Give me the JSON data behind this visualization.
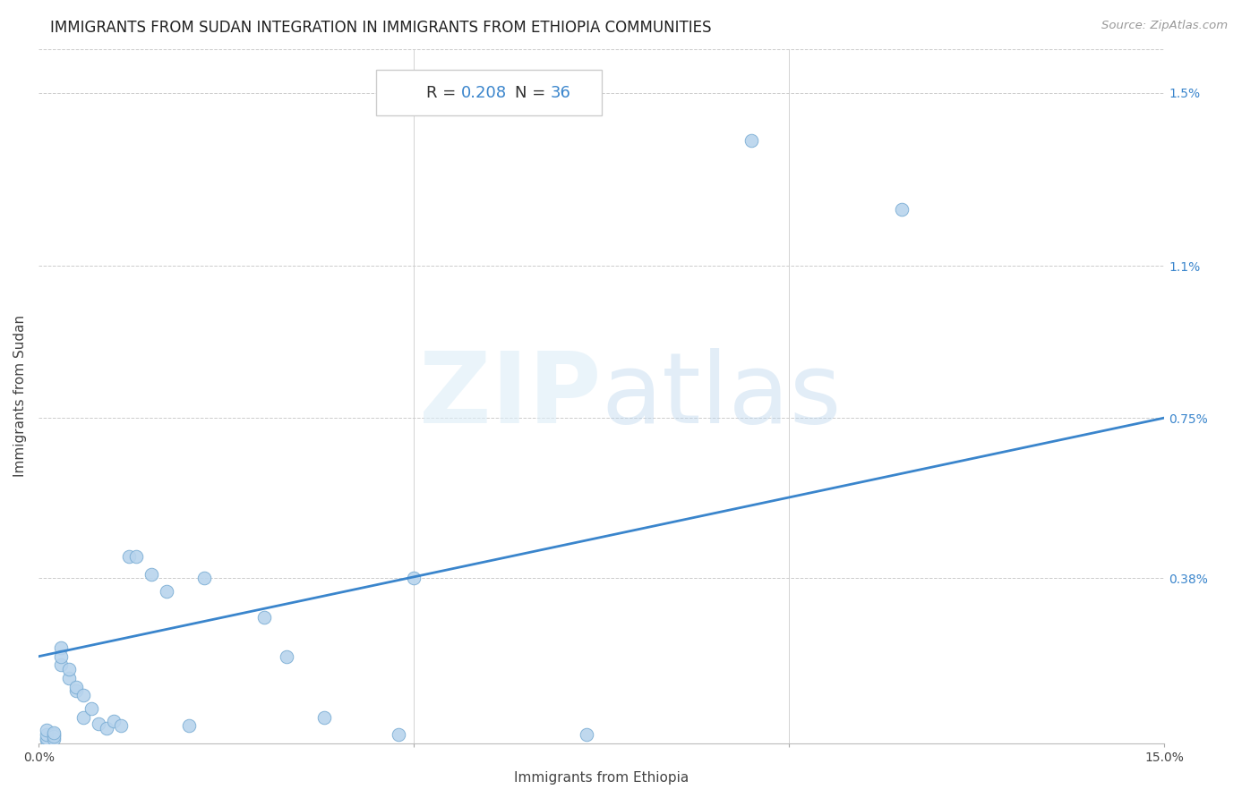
{
  "title": "IMMIGRANTS FROM SUDAN INTEGRATION IN IMMIGRANTS FROM ETHIOPIA COMMUNITIES",
  "source": "Source: ZipAtlas.com",
  "xlabel": "Immigrants from Ethiopia",
  "ylabel": "Immigrants from Sudan",
  "R": 0.208,
  "N": 36,
  "xlim": [
    0.0,
    0.15
  ],
  "ylim": [
    0.0,
    0.016
  ],
  "ytick_labels_right": [
    "0.38%",
    "0.75%",
    "1.1%",
    "1.5%"
  ],
  "ytick_vals_right": [
    0.0038,
    0.0075,
    0.011,
    0.015
  ],
  "scatter_color": "#b8d4ed",
  "scatter_edge_color": "#7aadd4",
  "line_color": "#3a85cc",
  "background_color": "#ffffff",
  "regression_x0": 0.0,
  "regression_y0": 0.002,
  "regression_x1": 0.15,
  "regression_y1": 0.0075,
  "points_x": [
    0.001,
    0.001,
    0.001,
    0.001,
    0.002,
    0.002,
    0.002,
    0.002,
    0.003,
    0.003,
    0.003,
    0.004,
    0.004,
    0.005,
    0.005,
    0.006,
    0.006,
    0.007,
    0.008,
    0.009,
    0.01,
    0.011,
    0.012,
    0.013,
    0.015,
    0.017,
    0.02,
    0.022,
    0.03,
    0.033,
    0.038,
    0.048,
    0.05,
    0.073,
    0.095,
    0.115
  ],
  "points_y": [
    8e-05,
    0.00012,
    0.0002,
    0.0003,
    0.0001,
    0.0002,
    0.00015,
    0.00025,
    0.0018,
    0.0022,
    0.002,
    0.0015,
    0.0017,
    0.0012,
    0.0013,
    0.0011,
    0.0006,
    0.0008,
    0.00045,
    0.00035,
    0.0005,
    0.0004,
    0.0043,
    0.0043,
    0.0039,
    0.0035,
    0.0004,
    0.0038,
    0.0029,
    0.002,
    0.0006,
    0.0002,
    0.0038,
    0.0002,
    0.0139,
    0.0123
  ],
  "title_fontsize": 12,
  "axis_label_fontsize": 11,
  "tick_fontsize": 10,
  "annotation_fontsize": 13
}
